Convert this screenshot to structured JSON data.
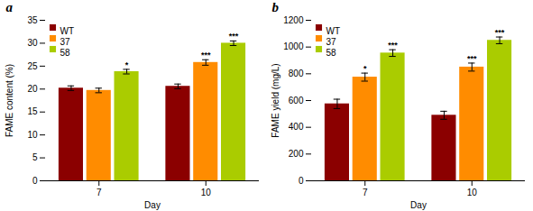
{
  "chart_data": [
    {
      "type": "bar",
      "title": "a",
      "xlabel": "Day",
      "ylabel": "FAME content (%)",
      "categories": [
        "7",
        "10"
      ],
      "series": [
        {
          "name": "WT",
          "color": "#8B0000",
          "values": [
            20.2,
            20.6
          ],
          "errors": [
            0.5,
            0.5
          ],
          "significance": [
            null,
            null
          ]
        },
        {
          "name": "37",
          "color": "#FF8C00",
          "values": [
            19.7,
            25.8
          ],
          "errors": [
            0.5,
            0.6
          ],
          "significance": [
            null,
            "***"
          ]
        },
        {
          "name": "58",
          "color": "#AACC00",
          "values": [
            23.8,
            30.0
          ],
          "errors": [
            0.5,
            0.5
          ],
          "significance": [
            "*",
            "***"
          ]
        }
      ],
      "ylim": [
        0,
        35
      ],
      "yticks": [
        0,
        5,
        10,
        15,
        20,
        25,
        30,
        35
      ],
      "legend": "upper left",
      "grid": false
    },
    {
      "type": "bar",
      "title": "b",
      "xlabel": "Day",
      "ylabel": "FAME yield (mg/L)",
      "categories": [
        "7",
        "10"
      ],
      "series": [
        {
          "name": "WT",
          "color": "#8B0000",
          "values": [
            575,
            490
          ],
          "errors": [
            35,
            30
          ],
          "significance": [
            null,
            null
          ]
        },
        {
          "name": "37",
          "color": "#FF8C00",
          "values": [
            775,
            850
          ],
          "errors": [
            30,
            30
          ],
          "significance": [
            "*",
            "***"
          ]
        },
        {
          "name": "58",
          "color": "#AACC00",
          "values": [
            955,
            1050
          ],
          "errors": [
            25,
            25
          ],
          "significance": [
            "***",
            "***"
          ]
        }
      ],
      "ylim": [
        0,
        1200
      ],
      "yticks": [
        0,
        200,
        400,
        600,
        800,
        1000,
        1200
      ],
      "legend": "upper left",
      "grid": false
    }
  ]
}
